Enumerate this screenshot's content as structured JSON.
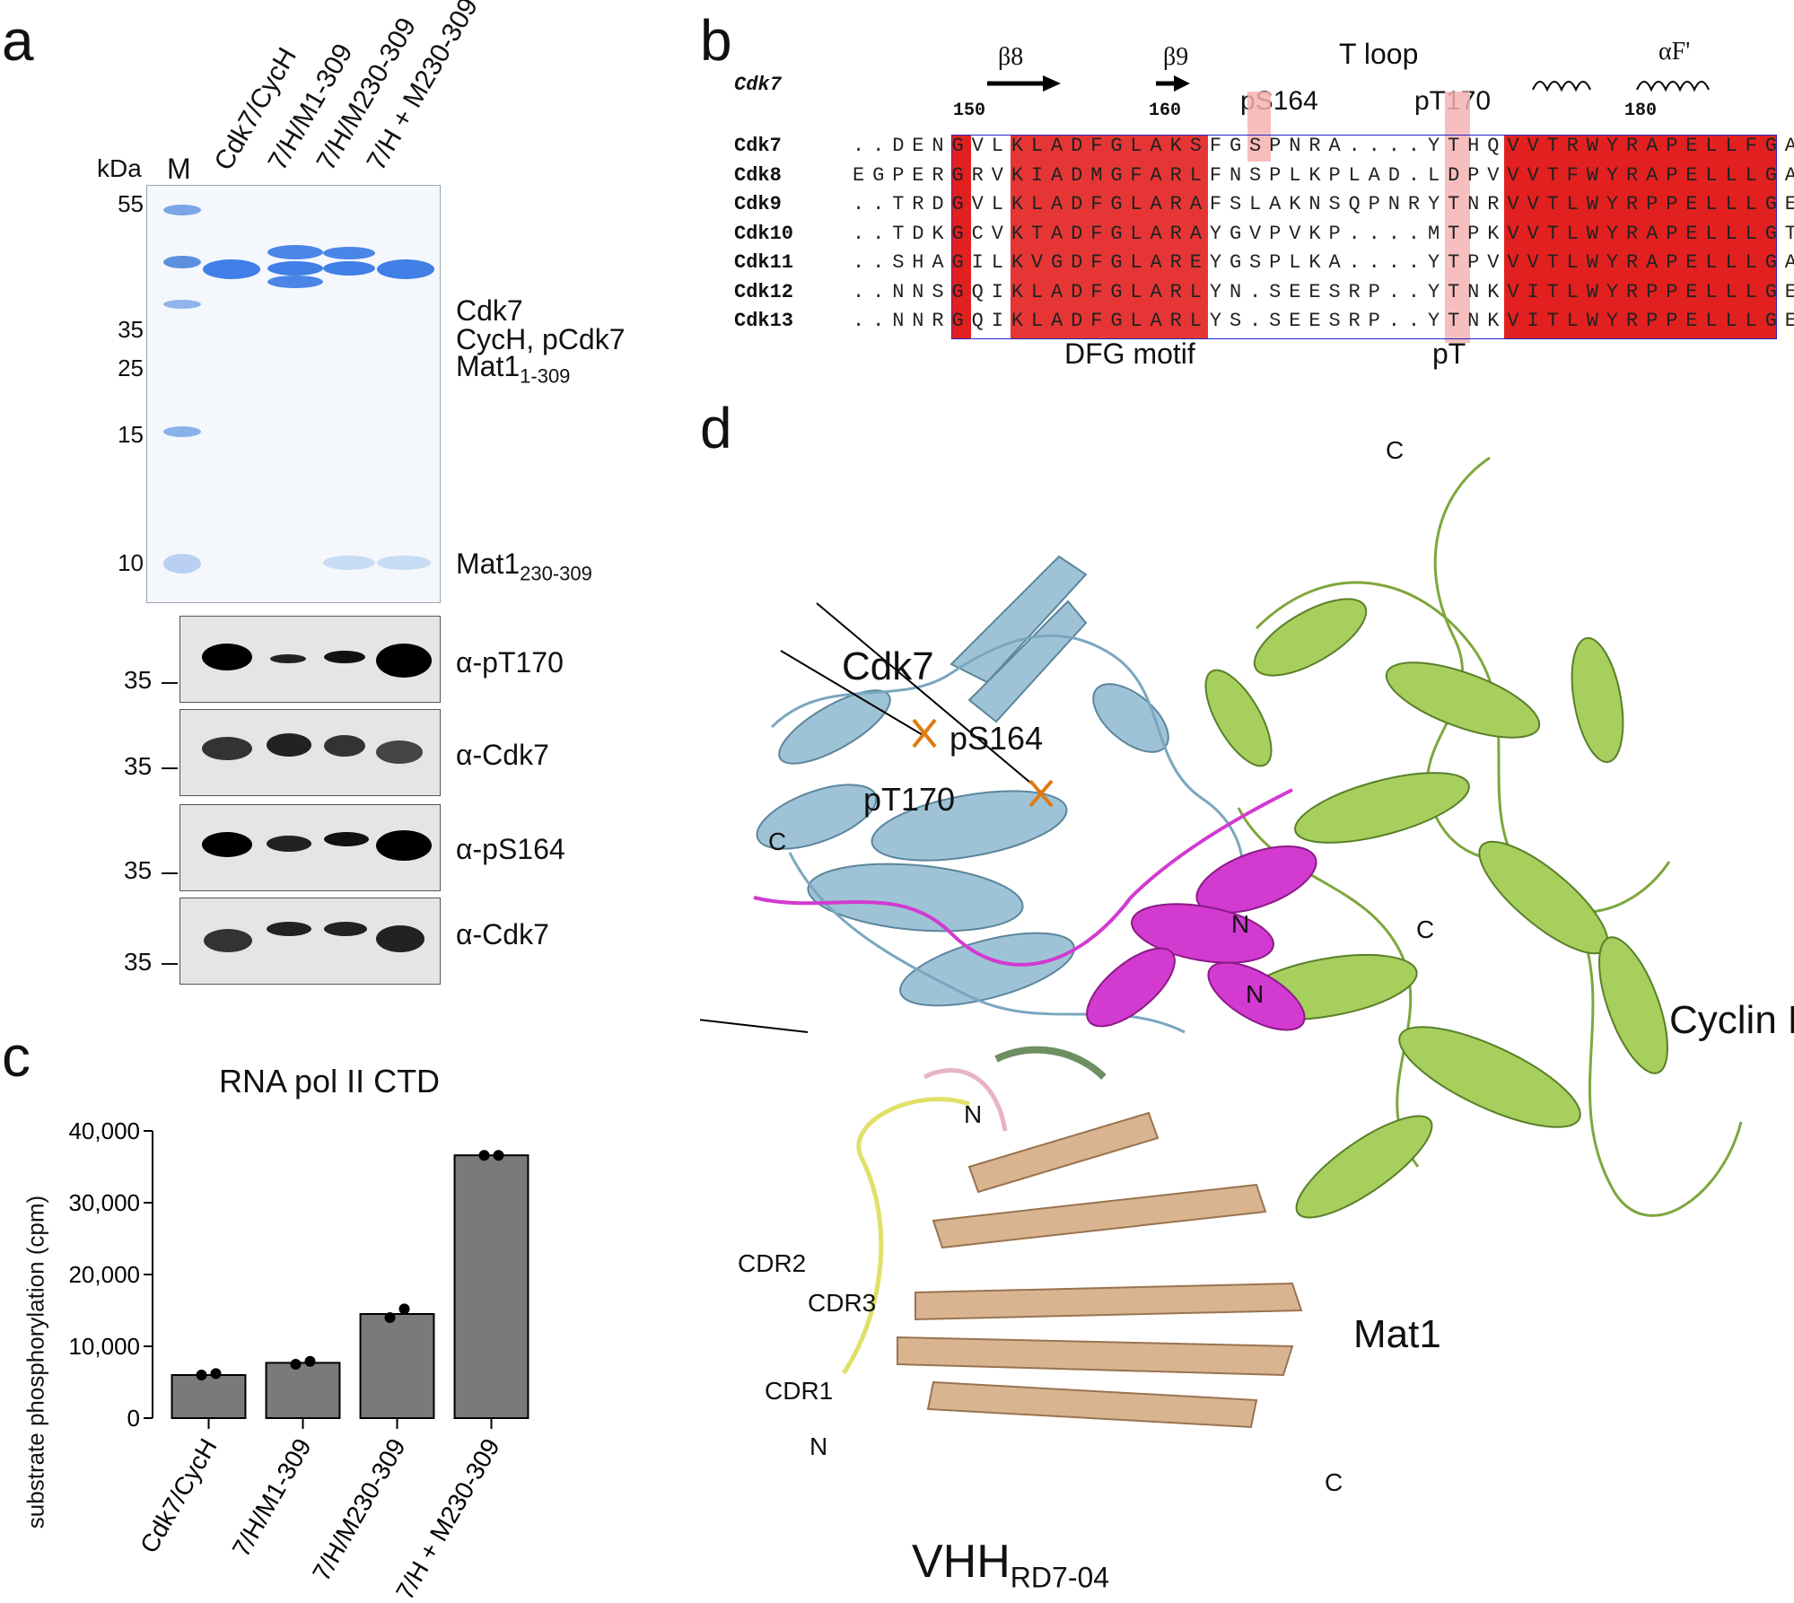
{
  "panels": {
    "a": "a",
    "b": "b",
    "c": "c",
    "d": "d"
  },
  "panel_a": {
    "kda_label": "kDa",
    "marker_label": "M",
    "lanes": [
      "Cdk7/CycH",
      "7/H/M1-309",
      "7/H/M230-309",
      "7/H + M230-309"
    ],
    "mw_ticks": [
      "55",
      "35",
      "25",
      "15",
      "10"
    ],
    "band_labels": {
      "cdk7": "Cdk7",
      "cych": "CycH, pCdk7",
      "mat1_long": "Mat1",
      "mat1_long_sub": "1-309",
      "mat1_short": "Mat1",
      "mat1_short_sub": "230-309"
    },
    "blots": [
      {
        "label": "α-pT170",
        "mw": "35"
      },
      {
        "label": "α-Cdk7",
        "mw": "35"
      },
      {
        "label": "α-pS164",
        "mw": "35"
      },
      {
        "label": "α-Cdk7",
        "mw": "35"
      }
    ]
  },
  "panel_b": {
    "header_name": "Cdk7",
    "beta8": "β8",
    "beta9": "β9",
    "tloop": "T loop",
    "alphaF": "αF'",
    "ps164": "pS164",
    "pt170": "pT170",
    "pos150": "150",
    "pos160": "160",
    "pos180": "180",
    "rows": [
      {
        "name": "Cdk7",
        "seq": "..DENGVLKLADFGLAKSFGSPNRA....YTHQVVTRWYRAPELLFGA"
      },
      {
        "name": "Cdk8",
        "seq": "EGPERGRVKIADMGFARLFNSPLKPLAD.LDPVVVTFWYRAPELLLGA"
      },
      {
        "name": "Cdk9",
        "seq": "..TRDGVLKLADFGLARAFSLAKNSQPNRYTNRVVTLWYRPPELLLGE"
      },
      {
        "name": "Cdk10",
        "seq": "..TDKGCVKTADFGLARAYGVPVKP....MTPKVVTLWYRAPELLLGT"
      },
      {
        "name": "Cdk11",
        "seq": "..SHAGILKVGDFGLAREYGSPLKA....YTPVVVTLWYRAPELLLGA"
      },
      {
        "name": "Cdk12",
        "seq": "..NNSGQIKLADFGLARLYN.SEESRP..YTNKVITLWYRPPELLLGE"
      },
      {
        "name": "Cdk13",
        "seq": "..NNRGQIKLADFGLARLYS.SEESRP..YTNKVITLWYRPPELLLGE"
      }
    ],
    "dfg_motif": "DFG motif",
    "pT": "pT"
  },
  "panel_c": {
    "title": "RNA pol II CTD",
    "ylabel": "substrate phosphorylation (cpm)"
  },
  "chart_data": {
    "type": "bar",
    "title": "RNA pol II CTD",
    "xlabel": "",
    "ylabel": "substrate phosphorylation (cpm)",
    "categories": [
      "Cdk7/CycH",
      "7/H/M1-309",
      "7/H/M230-309",
      "7/H + M230-309"
    ],
    "values": [
      6000,
      7700,
      14500,
      36600
    ],
    "points": [
      [
        6000,
        6200
      ],
      [
        7500,
        7900
      ],
      [
        14000,
        15200
      ],
      [
        36600,
        36600
      ]
    ],
    "ylim": [
      0,
      40000
    ],
    "yticks": [
      "0",
      "10,000",
      "20,000",
      "30,000",
      "40,000"
    ],
    "bar_color": "#7a7a7a",
    "grid": false
  },
  "panel_d": {
    "cdk7": "Cdk7",
    "cyclinH": "Cyclin H",
    "mat1": "Mat1",
    "vhh": "VHH",
    "vhh_sub": "RD7-04",
    "ps164": "pS164",
    "pt170": "pT170",
    "cdr1": "CDR1",
    "cdr2": "CDR2",
    "cdr3": "CDR3",
    "termini": {
      "c": "C",
      "n": "N"
    },
    "colors": {
      "cdk7": "#9fc3d6",
      "cyclinH": "#9cc55a",
      "mat1": "#d23ad0",
      "vhh": "#d9b491"
    }
  }
}
